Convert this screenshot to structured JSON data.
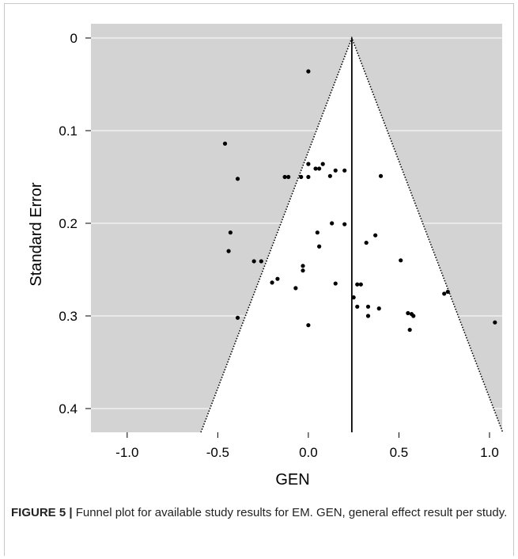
{
  "chart_data": {
    "type": "scatter",
    "xlabel": "GEN",
    "ylabel": "Standard Error",
    "xlim": [
      -1.2,
      1.07
    ],
    "ylim": [
      0,
      0.425
    ],
    "y_reversed": true,
    "x_ticks": [
      "-1.0",
      "-0.5",
      "0.0",
      "0.5",
      "1.0"
    ],
    "x_tick_values": [
      -1.0,
      -0.5,
      0.0,
      0.5,
      1.0
    ],
    "y_ticks": [
      "0",
      "0.1",
      "0.2",
      "0.3",
      "0.4"
    ],
    "y_tick_values": [
      0,
      0.1,
      0.2,
      0.3,
      0.4
    ],
    "grid": true,
    "pooled_estimate": 0.24,
    "funnel_z": 1.96,
    "colors": {
      "background": "#d3d3d3",
      "funnel": "#ffffff",
      "grid": "#ffffff",
      "points": "#000000"
    },
    "points": [
      {
        "x": 0.0,
        "y": 0.036
      },
      {
        "x": -0.46,
        "y": 0.114
      },
      {
        "x": -0.39,
        "y": 0.152
      },
      {
        "x": 0.0,
        "y": 0.136
      },
      {
        "x": 0.08,
        "y": 0.136
      },
      {
        "x": 0.04,
        "y": 0.141
      },
      {
        "x": 0.06,
        "y": 0.141
      },
      {
        "x": 0.15,
        "y": 0.143
      },
      {
        "x": 0.2,
        "y": 0.143
      },
      {
        "x": -0.13,
        "y": 0.15
      },
      {
        "x": -0.11,
        "y": 0.15
      },
      {
        "x": -0.04,
        "y": 0.15
      },
      {
        "x": 0.0,
        "y": 0.15
      },
      {
        "x": 0.12,
        "y": 0.149
      },
      {
        "x": 0.4,
        "y": 0.149
      },
      {
        "x": 0.13,
        "y": 0.2
      },
      {
        "x": 0.2,
        "y": 0.201
      },
      {
        "x": 0.05,
        "y": 0.21
      },
      {
        "x": -0.43,
        "y": 0.21
      },
      {
        "x": 0.37,
        "y": 0.213
      },
      {
        "x": 0.32,
        "y": 0.221
      },
      {
        "x": 0.06,
        "y": 0.225
      },
      {
        "x": -0.44,
        "y": 0.23
      },
      {
        "x": -0.3,
        "y": 0.241
      },
      {
        "x": -0.26,
        "y": 0.241
      },
      {
        "x": 0.51,
        "y": 0.24
      },
      {
        "x": -0.03,
        "y": 0.246
      },
      {
        "x": -0.03,
        "y": 0.251
      },
      {
        "x": -0.17,
        "y": 0.26
      },
      {
        "x": -0.2,
        "y": 0.264
      },
      {
        "x": 0.15,
        "y": 0.265
      },
      {
        "x": 0.27,
        "y": 0.266
      },
      {
        "x": 0.29,
        "y": 0.266
      },
      {
        "x": -0.07,
        "y": 0.27
      },
      {
        "x": 0.77,
        "y": 0.274
      },
      {
        "x": 0.75,
        "y": 0.276
      },
      {
        "x": 0.25,
        "y": 0.28
      },
      {
        "x": 0.27,
        "y": 0.29
      },
      {
        "x": 0.33,
        "y": 0.29
      },
      {
        "x": 0.39,
        "y": 0.292
      },
      {
        "x": 0.55,
        "y": 0.297
      },
      {
        "x": 0.57,
        "y": 0.298
      },
      {
        "x": 0.58,
        "y": 0.3
      },
      {
        "x": 0.33,
        "y": 0.3
      },
      {
        "x": -0.39,
        "y": 0.302
      },
      {
        "x": 1.03,
        "y": 0.307
      },
      {
        "x": 0.0,
        "y": 0.31
      },
      {
        "x": 0.56,
        "y": 0.315
      }
    ]
  },
  "caption": {
    "label": "FIGURE 5 |",
    "text": " Funnel plot for available study results for EM. GEN, general effect result per study."
  }
}
